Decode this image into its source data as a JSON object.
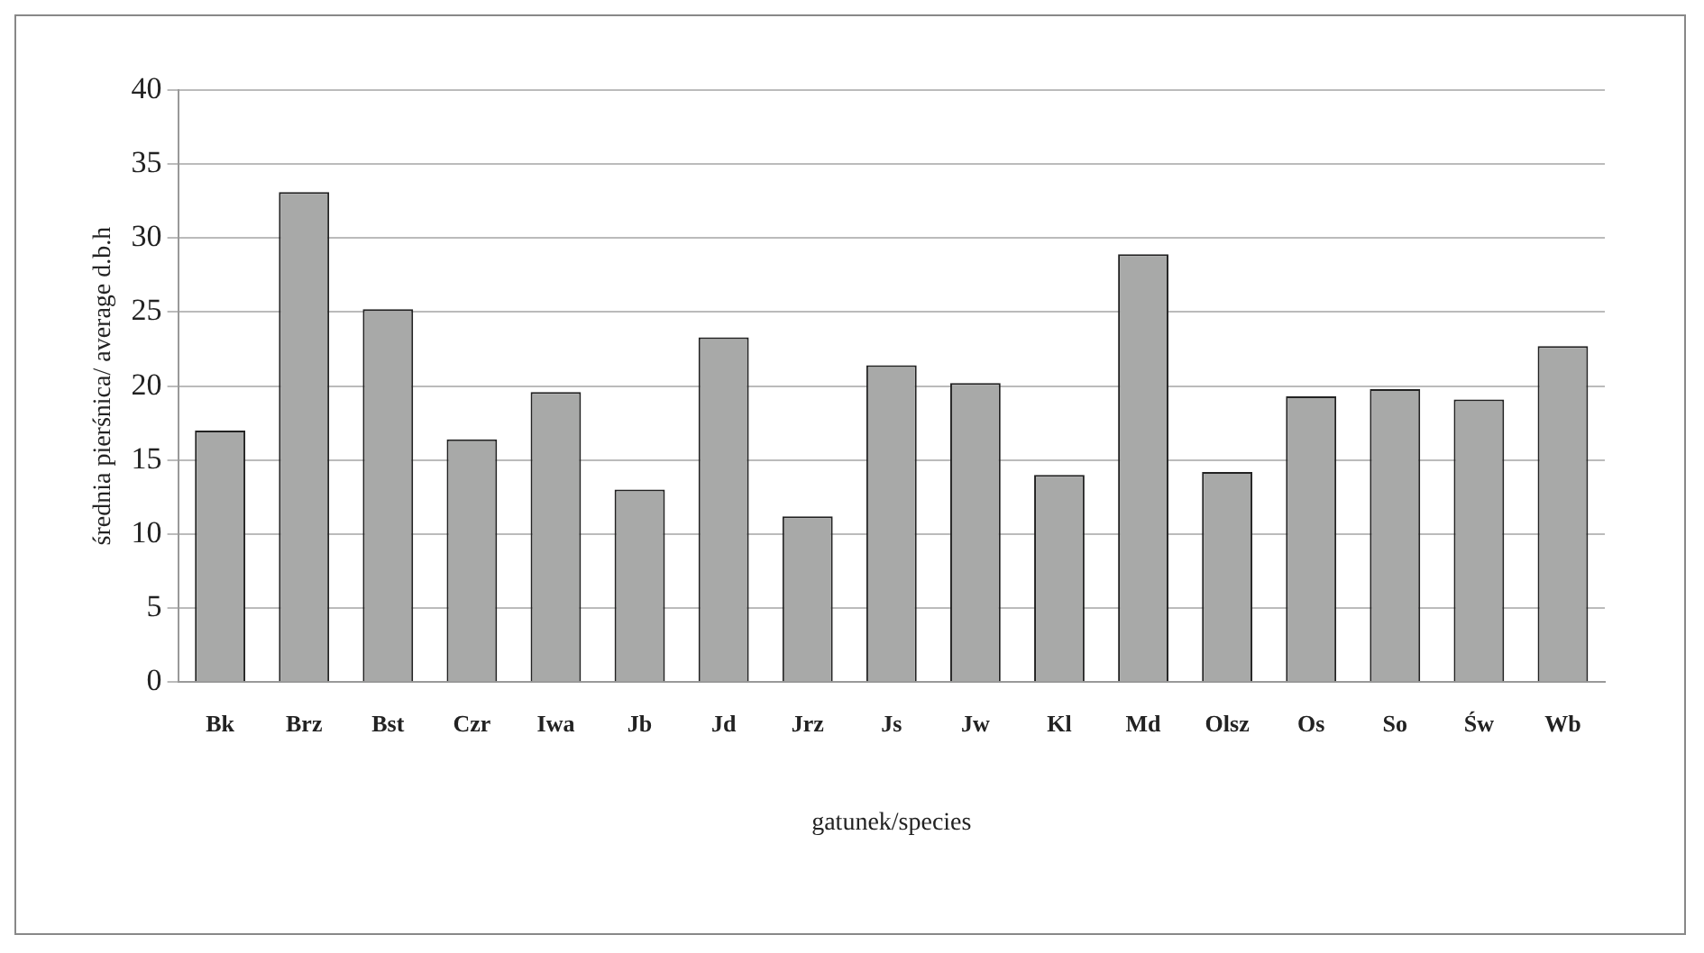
{
  "chart_data": {
    "type": "bar",
    "xlabel": "gatunek/species",
    "ylabel": "średnia pierśnica/ average d.b.h",
    "categories": [
      "Bk",
      "Brz",
      "Bst",
      "Czr",
      "Iwa",
      "Jb",
      "Jd",
      "Jrz",
      "Js",
      "Jw",
      "Kl",
      "Md",
      "Olsz",
      "Os",
      "So",
      "Św",
      "Wb"
    ],
    "values": [
      17.0,
      33.1,
      25.2,
      16.4,
      19.6,
      13.0,
      23.3,
      11.2,
      21.4,
      20.2,
      14.0,
      28.9,
      14.2,
      19.3,
      19.8,
      19.1,
      22.7
    ],
    "color": "#a8a9a8",
    "ylim": [
      0,
      40
    ],
    "yticks": [
      0,
      5,
      10,
      15,
      20,
      25,
      30,
      35,
      40
    ],
    "grid": "y",
    "legend": false
  }
}
